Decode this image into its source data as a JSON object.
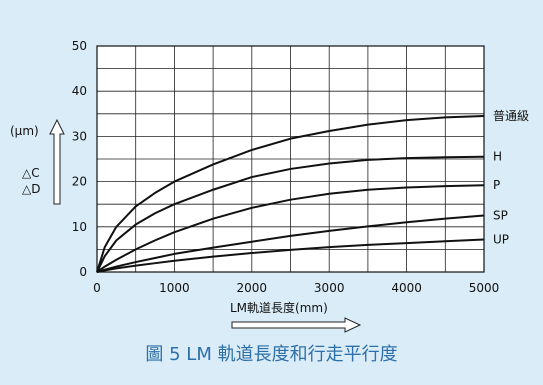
{
  "caption": "圖 5 LM 軌道長度和行走平行度",
  "chart_data": {
    "type": "line",
    "xlabel": "LM軌道長度(mm)",
    "ylabel_unit": "(μm)",
    "ylabel_lines": [
      "△C",
      "△D"
    ],
    "xlim": [
      0,
      5000
    ],
    "ylim": [
      0,
      50
    ],
    "x_ticks": [
      0,
      1000,
      2000,
      3000,
      4000,
      5000
    ],
    "y_ticks": [
      0,
      10,
      20,
      30,
      40,
      50
    ],
    "grid": true,
    "x": [
      0,
      100,
      250,
      500,
      750,
      1000,
      1500,
      2000,
      2500,
      3000,
      3500,
      4000,
      4500,
      5000
    ],
    "series": [
      {
        "name": "普通級",
        "values": [
          0,
          5.5,
          10,
          14.5,
          17.5,
          20,
          23.8,
          27,
          29.5,
          31.2,
          32.6,
          33.6,
          34.2,
          34.5
        ]
      },
      {
        "name": "H",
        "values": [
          0,
          3.5,
          7,
          10.5,
          13,
          15,
          18.2,
          21,
          22.8,
          24,
          24.8,
          25.2,
          25.4,
          25.5
        ]
      },
      {
        "name": "P",
        "values": [
          0,
          1.2,
          2.7,
          5,
          7,
          8.8,
          11.8,
          14.2,
          16,
          17.3,
          18.2,
          18.7,
          19,
          19.2
        ]
      },
      {
        "name": "SP",
        "values": [
          0,
          0.5,
          1.2,
          2.2,
          3.1,
          4,
          5.4,
          6.7,
          8,
          9.1,
          10.1,
          11,
          11.8,
          12.5
        ]
      },
      {
        "name": "UP",
        "values": [
          0,
          0.35,
          0.8,
          1.4,
          1.95,
          2.5,
          3.4,
          4.2,
          4.9,
          5.5,
          6,
          6.4,
          6.8,
          7.2
        ]
      }
    ]
  }
}
